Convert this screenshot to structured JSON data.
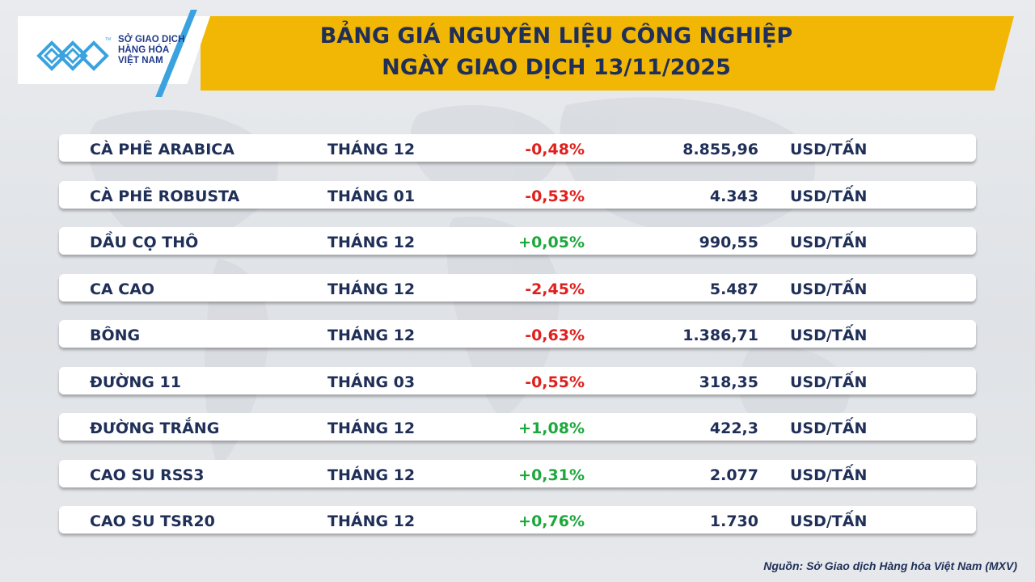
{
  "logo": {
    "lines": [
      "SỞ GIAO DỊCH",
      "HÀNG HÓA",
      "VIỆT NAM"
    ],
    "icon": "mxv-logo-icon",
    "brand_color": "#3aa3df"
  },
  "header": {
    "title_line1": "BẢNG GIÁ NGUYÊN LIỆU CÔNG NGHIỆP",
    "title_line2": "NGÀY GIAO DỊCH 13/11/2025",
    "accent_color": "#f2b705"
  },
  "table": {
    "rows": [
      {
        "name": "CÀ PHÊ ARABICA",
        "month": "THÁNG 12",
        "change": "-0,48%",
        "direction": "down",
        "price": "8.855,96",
        "unit": "USD/TẤN"
      },
      {
        "name": "CÀ PHÊ ROBUSTA",
        "month": "THÁNG 01",
        "change": "-0,53%",
        "direction": "down",
        "price": "4.343",
        "unit": "USD/TẤN"
      },
      {
        "name": "DẦU CỌ THÔ",
        "month": "THÁNG 12",
        "change": "+0,05%",
        "direction": "up",
        "price": "990,55",
        "unit": "USD/TẤN"
      },
      {
        "name": "CA CAO",
        "month": "THÁNG 12",
        "change": "-2,45%",
        "direction": "down",
        "price": "5.487",
        "unit": "USD/TẤN"
      },
      {
        "name": "BÔNG",
        "month": "THÁNG 12",
        "change": "-0,63%",
        "direction": "down",
        "price": "1.386,71",
        "unit": "USD/TẤN"
      },
      {
        "name": "ĐƯỜNG 11",
        "month": "THÁNG 03",
        "change": "-0,55%",
        "direction": "down",
        "price": "318,35",
        "unit": "USD/TẤN"
      },
      {
        "name": "ĐƯỜNG TRẮNG",
        "month": "THÁNG 12",
        "change": "+1,08%",
        "direction": "up",
        "price": "422,3",
        "unit": "USD/TẤN"
      },
      {
        "name": "CAO SU RSS3",
        "month": "THÁNG 12",
        "change": "+0,31%",
        "direction": "up",
        "price": "2.077",
        "unit": "USD/TẤN"
      },
      {
        "name": "CAO SU TSR20",
        "month": "THÁNG 12",
        "change": "+0,76%",
        "direction": "up",
        "price": "1.730",
        "unit": "USD/TẤN"
      }
    ],
    "colors": {
      "up": "#1da83c",
      "down": "#e0201c",
      "text": "#1f2f58"
    }
  },
  "source": "Nguồn: Sở Giao dịch Hàng hóa Việt Nam (MXV)"
}
